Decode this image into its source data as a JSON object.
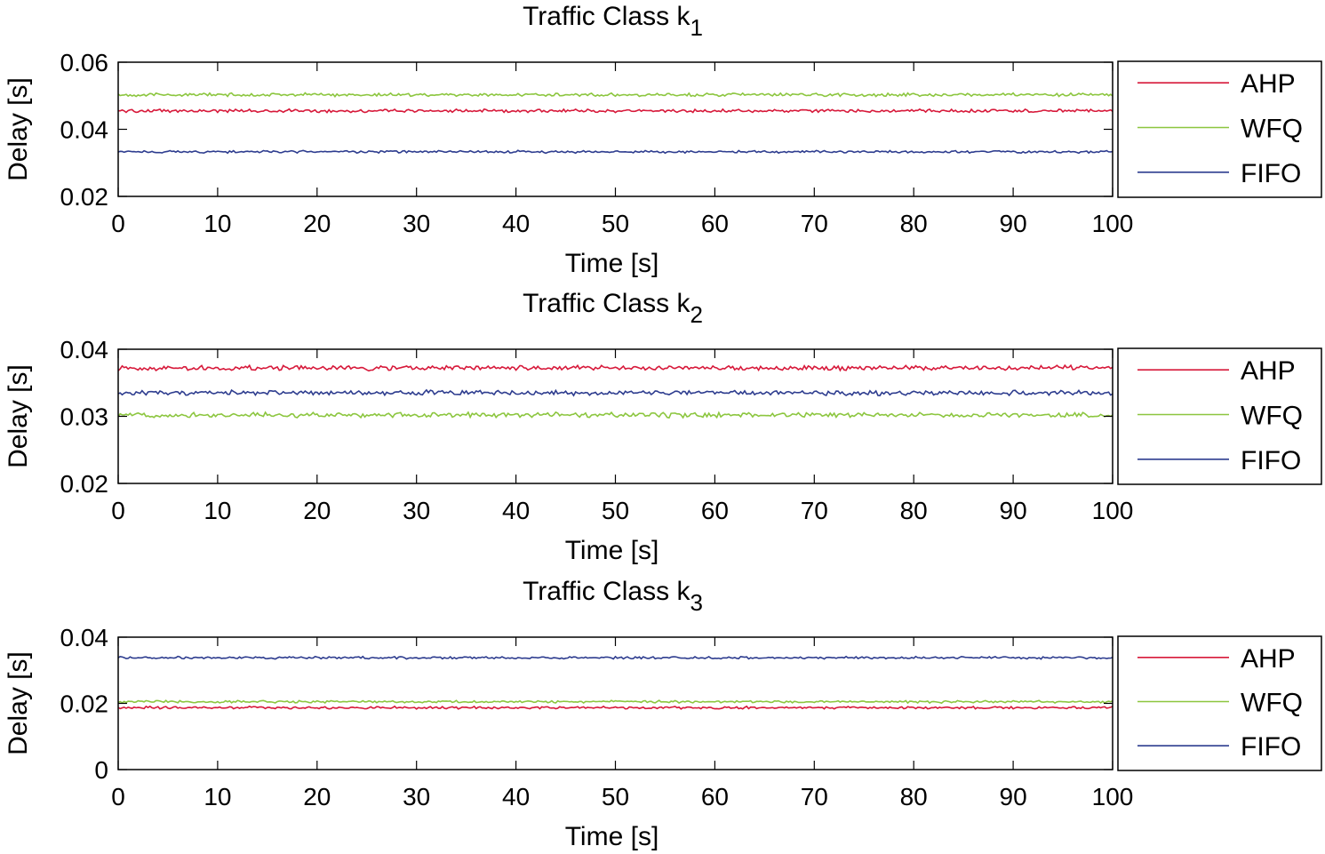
{
  "chart_data": [
    {
      "type": "line",
      "title": "Traffic Class k",
      "title_sub": "1",
      "xlabel": "Time [s]",
      "ylabel": "Delay [s]",
      "xlim": [
        0,
        100
      ],
      "ylim": [
        0.02,
        0.06
      ],
      "xticks": [
        0,
        10,
        20,
        30,
        40,
        50,
        60,
        70,
        80,
        90,
        100
      ],
      "xtick_labels": [
        "0",
        "10",
        "20",
        "30",
        "40",
        "50",
        "60",
        "70",
        "80",
        "90",
        "100"
      ],
      "yticks": [
        0.02,
        0.04,
        0.06
      ],
      "ytick_labels": [
        "0.02",
        "0.04",
        "0.06"
      ],
      "legend_position": "outside-right",
      "grid": false,
      "series": [
        {
          "name": "AHP",
          "color": "#d7193a",
          "mean": 0.0455,
          "noise": 0.0004
        },
        {
          "name": "WFQ",
          "color": "#8cc63f",
          "mean": 0.0503,
          "noise": 0.0004
        },
        {
          "name": "FIFO",
          "color": "#2e3d8f",
          "mean": 0.0333,
          "noise": 0.0003
        }
      ]
    },
    {
      "type": "line",
      "title": "Traffic Class k",
      "title_sub": "2",
      "xlabel": "Time [s]",
      "ylabel": "Delay [s]",
      "xlim": [
        0,
        100
      ],
      "ylim": [
        0.02,
        0.04
      ],
      "xticks": [
        0,
        10,
        20,
        30,
        40,
        50,
        60,
        70,
        80,
        90,
        100
      ],
      "xtick_labels": [
        "0",
        "10",
        "20",
        "30",
        "40",
        "50",
        "60",
        "70",
        "80",
        "90",
        "100"
      ],
      "yticks": [
        0.02,
        0.03,
        0.04
      ],
      "ytick_labels": [
        "0.02",
        "0.03",
        "0.04"
      ],
      "legend_position": "outside-right",
      "grid": false,
      "series": [
        {
          "name": "AHP",
          "color": "#d7193a",
          "mean": 0.0372,
          "noise": 0.0003
        },
        {
          "name": "WFQ",
          "color": "#8cc63f",
          "mean": 0.0302,
          "noise": 0.0003
        },
        {
          "name": "FIFO",
          "color": "#2e3d8f",
          "mean": 0.0335,
          "noise": 0.0003
        }
      ]
    },
    {
      "type": "line",
      "title": "Traffic Class k",
      "title_sub": "3",
      "xlabel": "Time [s]",
      "ylabel": "Delay [s]",
      "xlim": [
        0,
        100
      ],
      "ylim": [
        0,
        0.04
      ],
      "xticks": [
        0,
        10,
        20,
        30,
        40,
        50,
        60,
        70,
        80,
        90,
        100
      ],
      "xtick_labels": [
        "0",
        "10",
        "20",
        "30",
        "40",
        "50",
        "60",
        "70",
        "80",
        "90",
        "100"
      ],
      "yticks": [
        0,
        0.02,
        0.04
      ],
      "ytick_labels": [
        "0",
        "0.02",
        "0.04"
      ],
      "legend_position": "outside-right",
      "grid": false,
      "series": [
        {
          "name": "AHP",
          "color": "#d7193a",
          "mean": 0.0187,
          "noise": 0.0003
        },
        {
          "name": "WFQ",
          "color": "#8cc63f",
          "mean": 0.0205,
          "noise": 0.0003
        },
        {
          "name": "FIFO",
          "color": "#2e3d8f",
          "mean": 0.0338,
          "noise": 0.0003
        }
      ]
    }
  ]
}
